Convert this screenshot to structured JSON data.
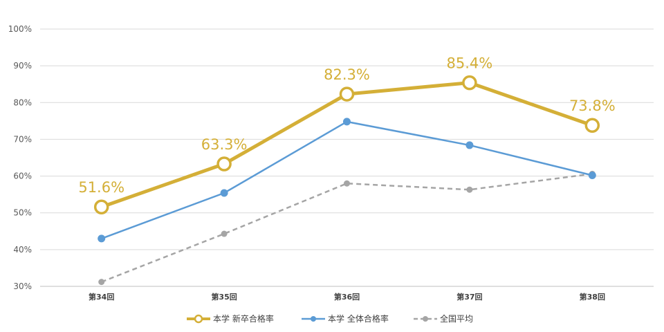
{
  "chart_data": {
    "type": "line",
    "title": "",
    "xlabel": "",
    "ylabel": "",
    "categories": [
      "第34回",
      "第35回",
      "第36回",
      "第37回",
      "第38回"
    ],
    "ylim": [
      30,
      100
    ],
    "yticks": [
      "30%",
      "40%",
      "50%",
      "60%",
      "70%",
      "80%",
      "90%",
      "100%"
    ],
    "grid": true,
    "legend_position": "bottom",
    "series": [
      {
        "name": "本学 新卒合格率",
        "values": [
          51.6,
          63.3,
          82.3,
          85.4,
          73.8
        ],
        "labels": [
          "51.6%",
          "63.3%",
          "82.3%",
          "85.4%",
          "73.8%"
        ],
        "color": "#D4AF37",
        "style": "solid-thick-hollow-marker"
      },
      {
        "name": "本学 全体合格率",
        "values": [
          43.0,
          55.4,
          74.8,
          68.4,
          60.2
        ],
        "color": "#5B9BD5",
        "style": "solid-marker"
      },
      {
        "name": "全国平均",
        "values": [
          31.2,
          44.3,
          58.0,
          56.3,
          60.6
        ],
        "color": "#A5A5A5",
        "style": "dashed-marker"
      }
    ]
  }
}
